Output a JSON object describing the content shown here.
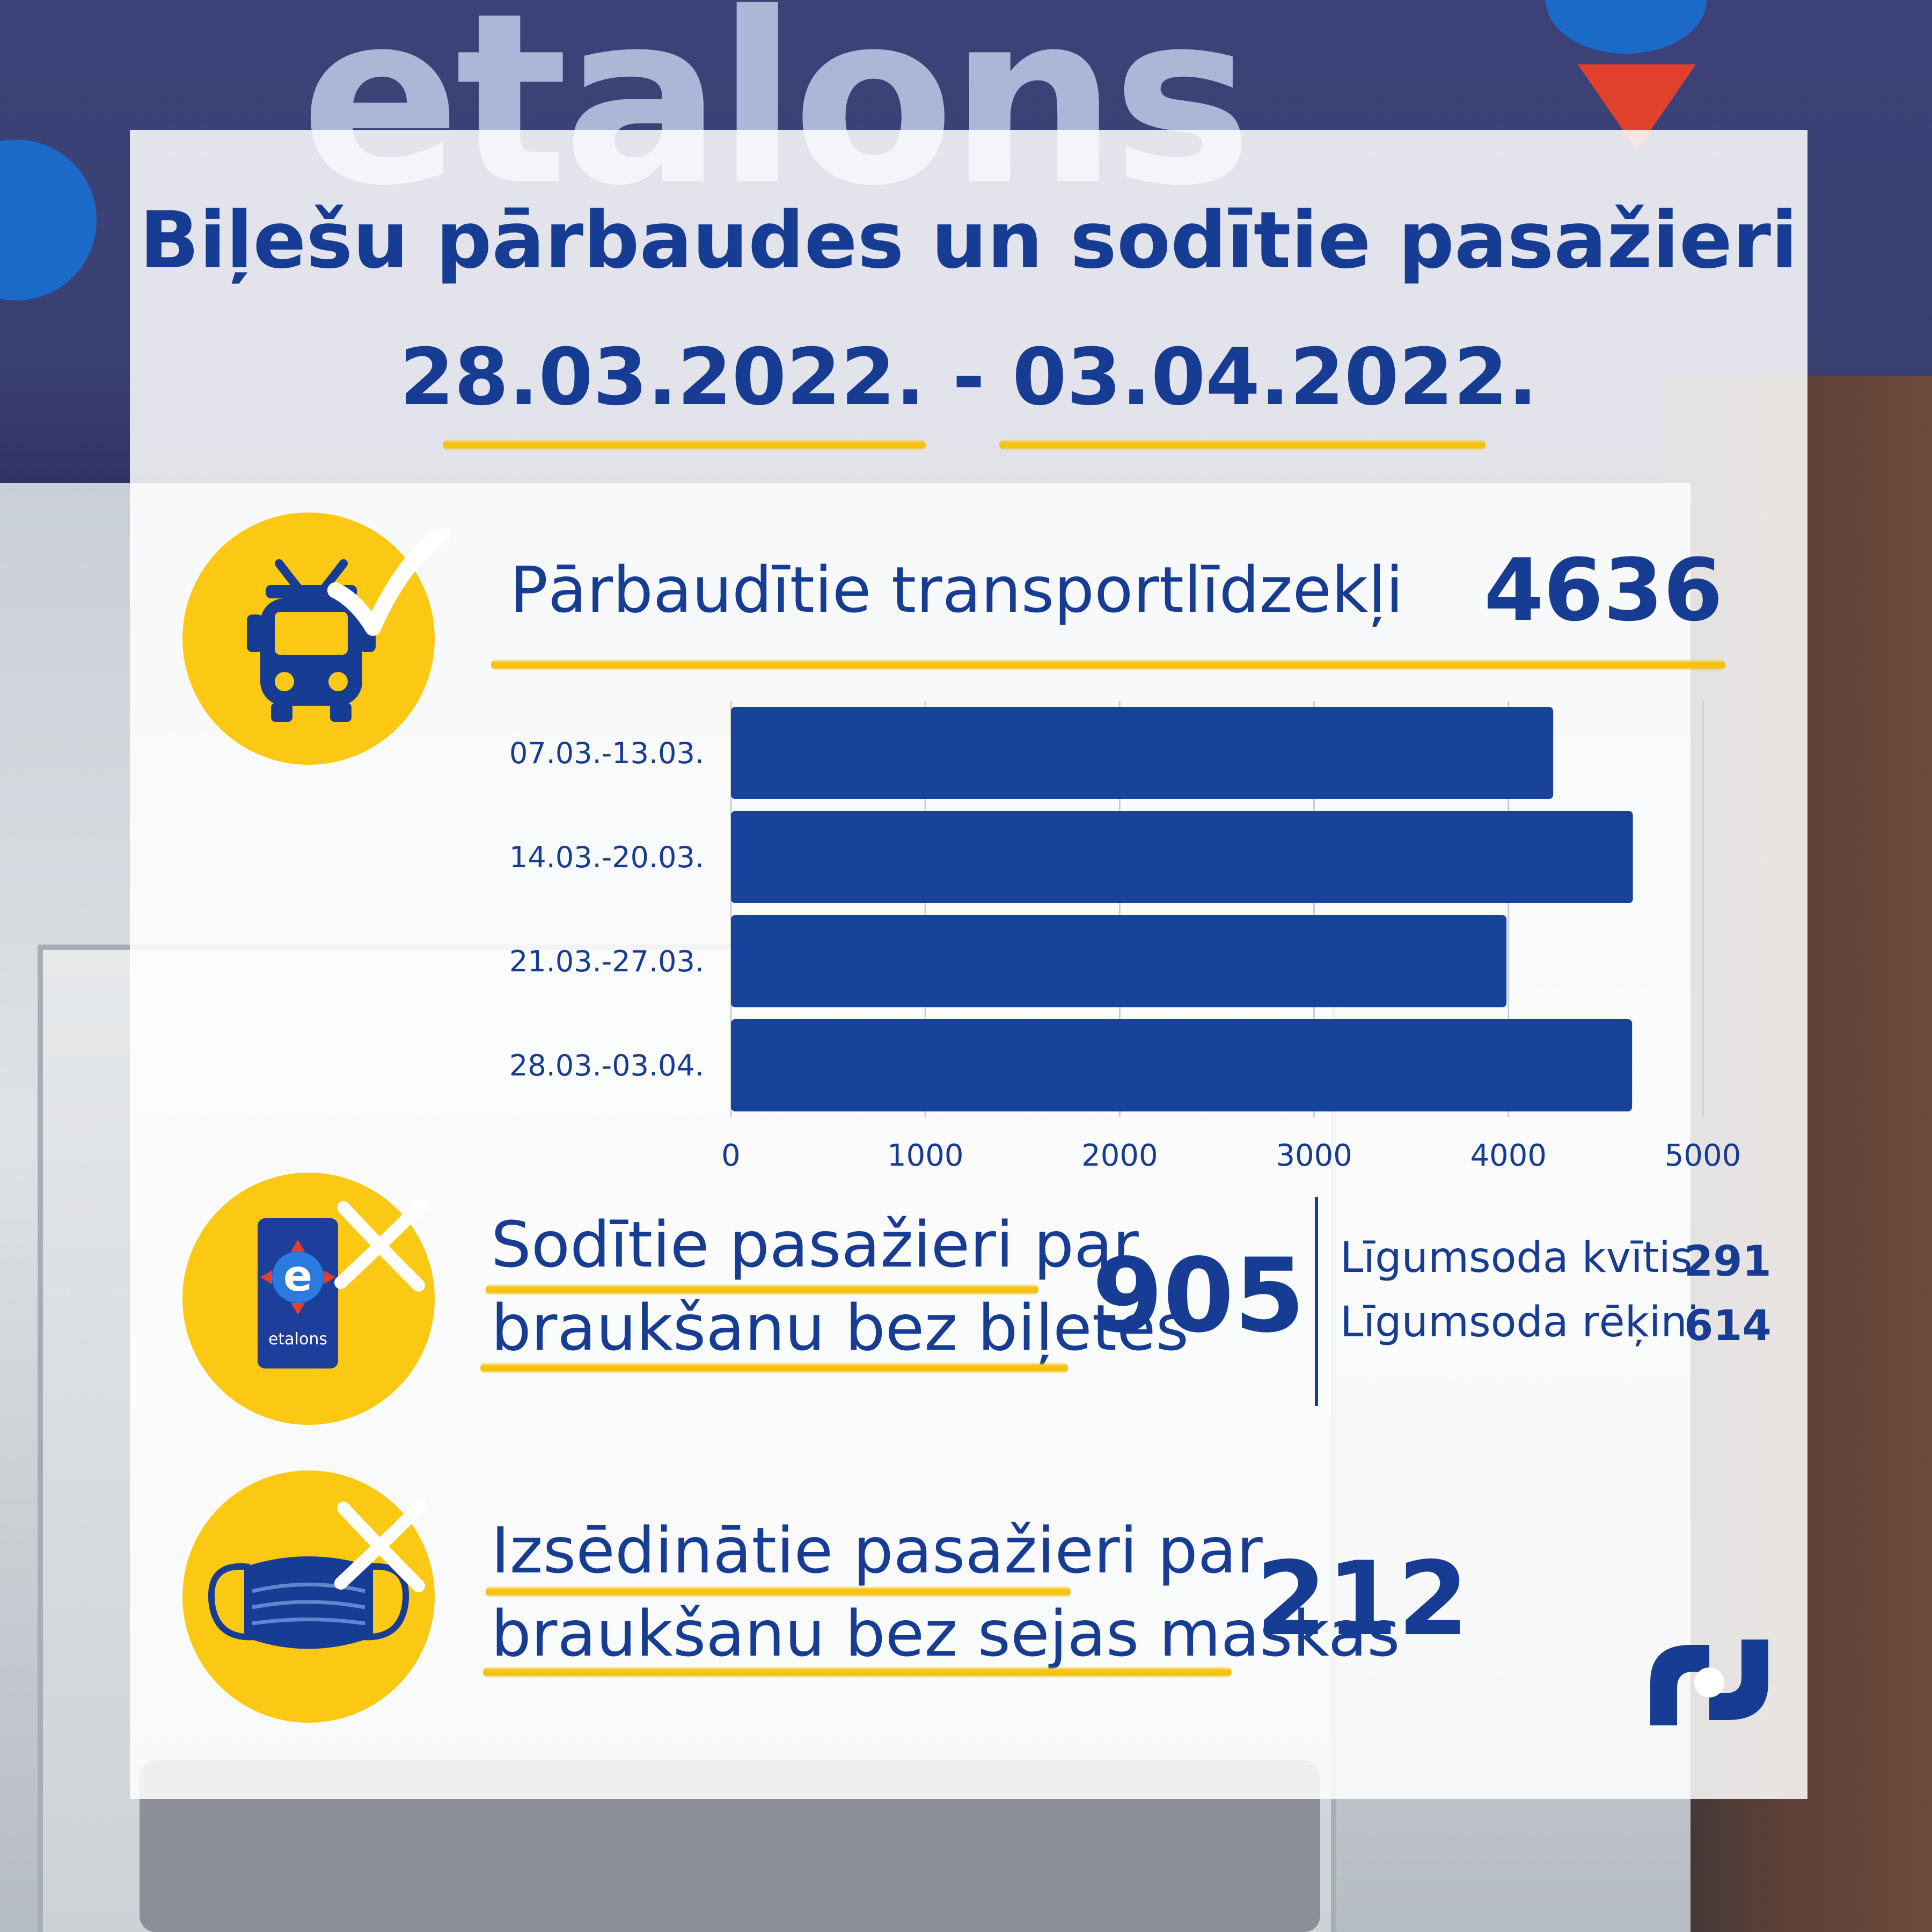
{
  "title": {
    "line1": "Biļešu pārbaudes un sodītie pasažieri",
    "line2": "28.03.2022. - 03.04.2022."
  },
  "stat_vehicles": {
    "label": "Pārbaudītie transportlīdzekļi",
    "value": "4636"
  },
  "stat_fined": {
    "label_line1": "Sodītie pasažieri par",
    "label_line2": "braukšanu bez biļetes",
    "value": "905",
    "breakdown": [
      {
        "label": "Līgumsoda kvītis",
        "value": "291"
      },
      {
        "label": "Līgumsoda rēķini",
        "value": "614"
      }
    ]
  },
  "stat_mask": {
    "label_line1": "Izsēdinātie pasažieri par",
    "label_line2": "braukšanu bez sejas maskas",
    "value": "212"
  },
  "card_logo_text": "etalons",
  "icons": [
    "bus-icon",
    "checkmark-icon",
    "etalons-card-icon",
    "cross-icon",
    "face-mask-icon",
    "rs-logo-icon"
  ],
  "colors": {
    "primary": "#173c94",
    "bar": "#17439a",
    "accent_yellow": "#fbc813",
    "gridline": "#c9cdd6"
  },
  "chart_data": {
    "type": "bar",
    "orientation": "horizontal",
    "categories": [
      "07.03.-13.03.",
      "14.03.-20.03.",
      "21.03.-27.03.",
      "28.03.-03.04."
    ],
    "values": [
      4230,
      4640,
      3990,
      4636
    ],
    "xlim": [
      0,
      5000
    ],
    "xticks": [
      "0",
      "1000",
      "2000",
      "3000",
      "4000",
      "5000"
    ],
    "grid": true,
    "legend": "none"
  }
}
